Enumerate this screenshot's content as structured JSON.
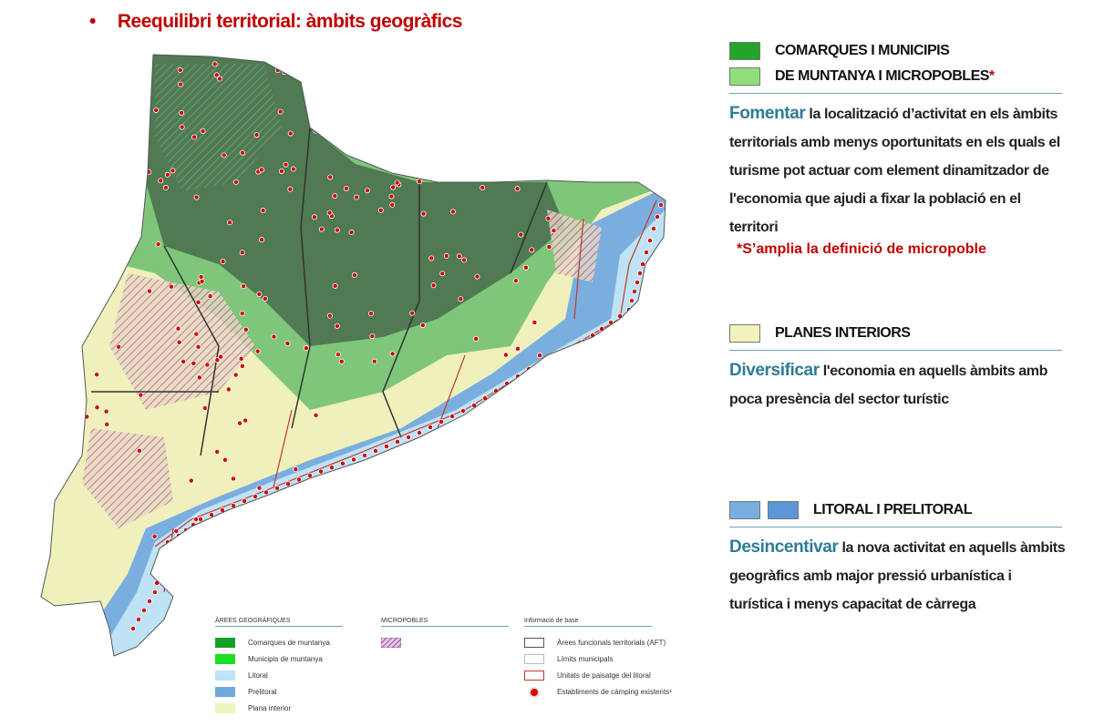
{
  "title": "Reequilibri territorial: àmbits geogràfics",
  "bullet": "•",
  "sections": [
    {
      "heading_line1": "COMARQUES I MUNICIPIS",
      "heading_line2": "DE MUNTANYA I MICROPOBLES",
      "asterisk": "*",
      "verb": "Fomentar",
      "text": " la localització d’activitat en els àmbits territorials amb menys oportunitats en els quals el turisme pot actuar com element dinamitzador de l'economia que ajudi a fixar la població en el territori",
      "note": "*S’amplia la definició de micropoble",
      "swatch_colors": [
        "#22a52a",
        "#8fe07a"
      ]
    },
    {
      "heading": "PLANES INTERIORS",
      "verb": "Diversificar",
      "text": " l'economia en aquells àmbits amb poca presència del sector turístic",
      "swatch_colors": [
        "#f2f2bf"
      ]
    },
    {
      "heading": "LITORAL I PRELITORAL",
      "verb": "Desincentivar",
      "text": " la nova activitat en aquells àmbits geogràfics amb major pressió urbanística i turística i menys capacitat de càrrega",
      "swatch_colors": [
        "#79afe0",
        "#5b97d6"
      ]
    }
  ],
  "legend": {
    "areas": {
      "title": "ÀREES GEOGRÀFIQUES",
      "items": [
        {
          "label": "Comarques de muntanya",
          "color": "#14a028"
        },
        {
          "label": "Municipis de muntanya",
          "color": "#1be024"
        },
        {
          "label": "Litoral",
          "color": "#bde4f7"
        },
        {
          "label": "Prelitoral",
          "color": "#6ea8dc"
        },
        {
          "label": "Plana interior",
          "color": "#f1f3c0"
        }
      ]
    },
    "micropobles": {
      "title": "MICROPOBLES"
    },
    "base": {
      "title": "Informació de base",
      "items": [
        {
          "label": "Àrees funcionals territorials (AFT)"
        },
        {
          "label": "Límits municipals"
        },
        {
          "label": "Unitats de paisatge del litoral"
        },
        {
          "label": "Establiments de càmping existents¹"
        }
      ]
    }
  },
  "map_colors": {
    "mountain": "#4f7a52",
    "mountain_muni": "#7fc67a",
    "plain": "#f0f0bd",
    "coast": "#bfe3f5",
    "prelitoral": "#7aaedf",
    "camping": "#d00000"
  }
}
